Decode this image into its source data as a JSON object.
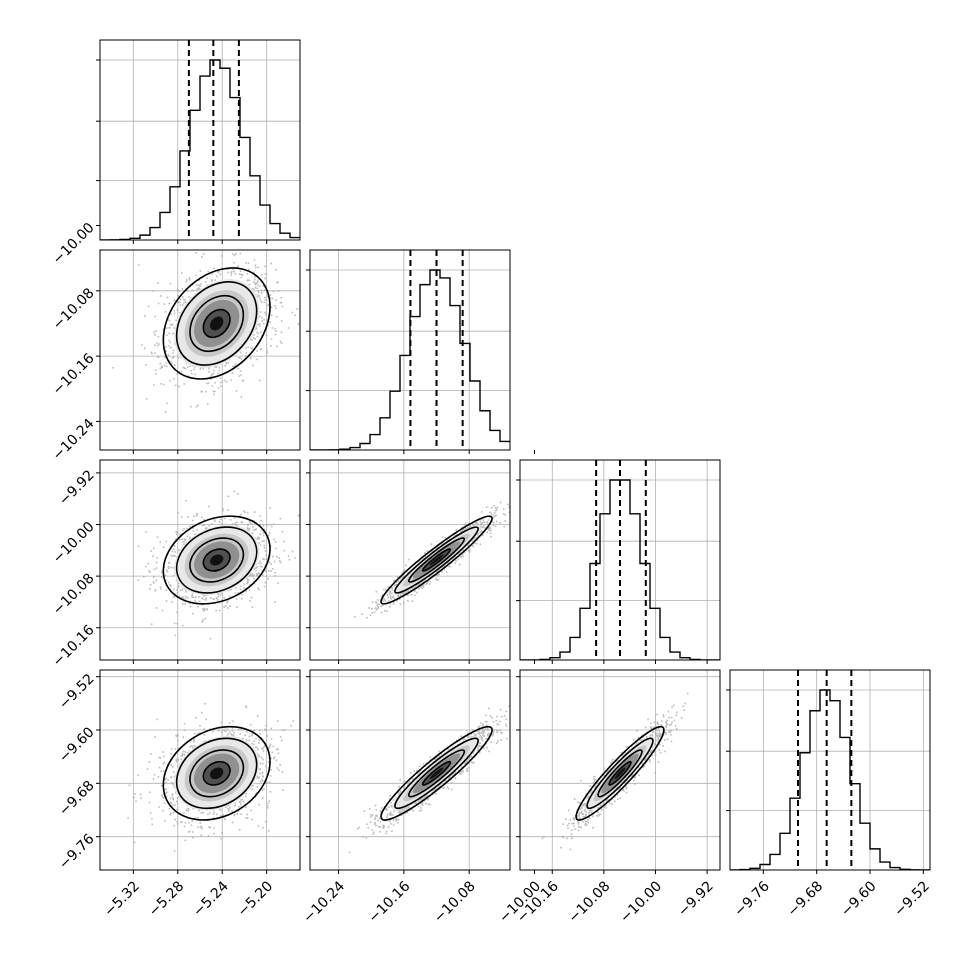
{
  "chart_data": {
    "type": "scatter",
    "subtype": "corner-plot",
    "title": "",
    "grid": true,
    "colors": {
      "ink": "#000000",
      "grid": "#b0b0b0",
      "points": "#a6a6a6"
    },
    "parameters": [
      {
        "center": -5.245,
        "sigma": 0.024,
        "lim": [
          -5.35,
          -5.17
        ],
        "ticks": [
          -5.32,
          -5.28,
          -5.24,
          -5.2
        ],
        "tick_labels": [
          "−5.32",
          "−5.28",
          "−5.24",
          "−5.20"
        ],
        "quantiles": [
          -5.27,
          -5.248,
          -5.225
        ]
      },
      {
        "center": -10.12,
        "sigma": 0.034,
        "lim": [
          -10.275,
          -10.03
        ],
        "ticks": [
          -10.24,
          -10.16,
          -10.08,
          -10.0
        ],
        "tick_labels": [
          "−10.24",
          "−10.16",
          "−10.08",
          "−10.00"
        ],
        "quantiles": [
          -10.152,
          -10.12,
          -10.088
        ]
      },
      {
        "center": -10.055,
        "sigma": 0.034,
        "lim": [
          -10.21,
          -9.9
        ],
        "ticks": [
          -10.16,
          -10.08,
          -10.0,
          -9.92
        ],
        "tick_labels": [
          "−10.16",
          "−10.08",
          "−10.00",
          "−9.92"
        ],
        "quantiles": [
          -10.092,
          -10.055,
          -10.015
        ]
      },
      {
        "center": -9.665,
        "sigma": 0.035,
        "lim": [
          -9.81,
          -9.51
        ],
        "ticks": [
          -9.76,
          -9.68,
          -9.6,
          -9.52
        ],
        "tick_labels": [
          "−9.76",
          "−9.68",
          "−9.60",
          "−9.52"
        ],
        "quantiles": [
          -9.708,
          -9.665,
          -9.628
        ]
      }
    ],
    "correlations": [
      {
        "i": 1,
        "j": 0,
        "rho": 0.3
      },
      {
        "i": 2,
        "j": 0,
        "rho": 0.25
      },
      {
        "i": 2,
        "j": 1,
        "rho": 0.95
      },
      {
        "i": 3,
        "j": 0,
        "rho": 0.25
      },
      {
        "i": 3,
        "j": 1,
        "rho": 0.93
      },
      {
        "i": 3,
        "j": 2,
        "rho": 0.93
      }
    ],
    "contour_levels_sigma": [
      0.5,
      1.0,
      1.5,
      2.0
    ],
    "histogram_bins": 20,
    "scatter_points_per_panel": 1400
  }
}
